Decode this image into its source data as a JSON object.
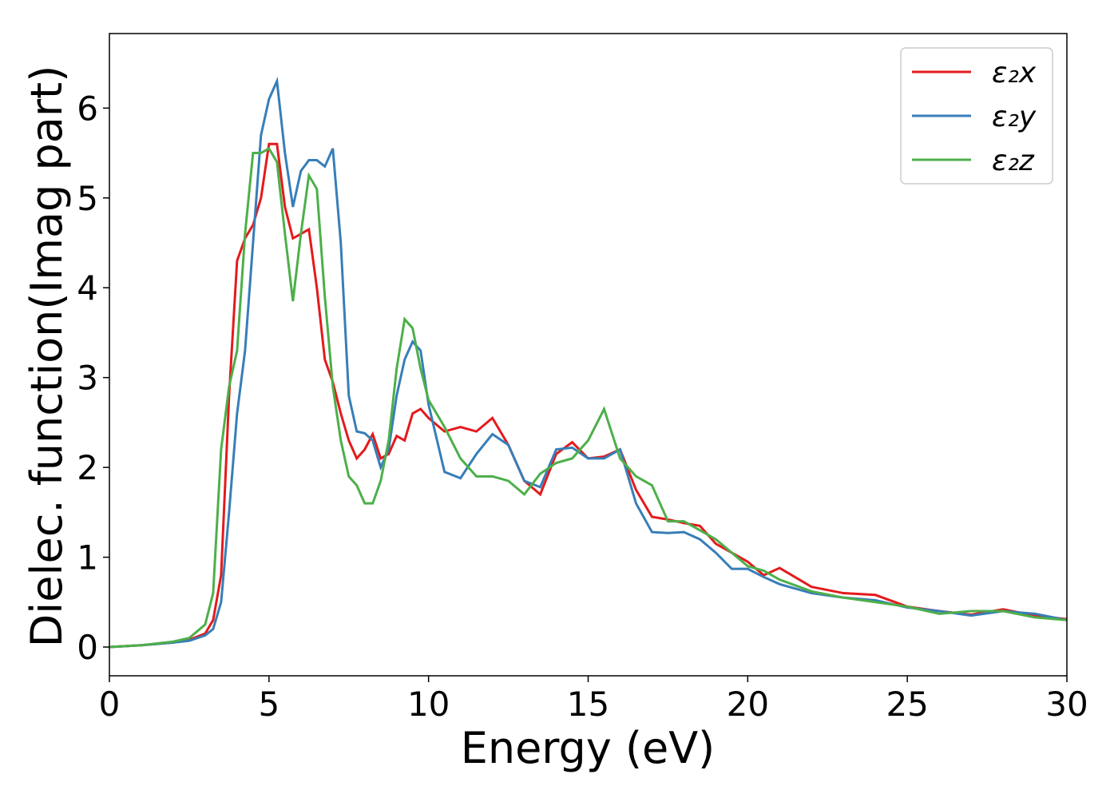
{
  "chart_data": {
    "type": "line",
    "xlabel": "Energy (eV)",
    "ylabel": "Dielec. function(Imag part)",
    "x": [
      0,
      1,
      2,
      2.5,
      3,
      3.25,
      3.5,
      3.75,
      4,
      4.25,
      4.5,
      4.75,
      5,
      5.25,
      5.5,
      5.75,
      6,
      6.25,
      6.5,
      6.75,
      7,
      7.25,
      7.5,
      7.75,
      8,
      8.25,
      8.5,
      8.75,
      9,
      9.25,
      9.5,
      9.75,
      10,
      10.5,
      11,
      11.5,
      12,
      12.5,
      13,
      13.5,
      14,
      14.5,
      15,
      15.5,
      16,
      16.5,
      17,
      17.5,
      18,
      18.5,
      19,
      19.5,
      20,
      20.5,
      21,
      22,
      23,
      24,
      25,
      26,
      27,
      28,
      29,
      30
    ],
    "series": [
      {
        "name": "ε₂x",
        "color": "#e41a1c",
        "values": [
          0,
          0.02,
          0.05,
          0.08,
          0.15,
          0.3,
          0.8,
          2.8,
          4.3,
          4.55,
          4.7,
          5.0,
          5.6,
          5.6,
          4.9,
          4.55,
          4.6,
          4.65,
          4.0,
          3.2,
          2.95,
          2.6,
          2.3,
          2.1,
          2.2,
          2.37,
          2.1,
          2.15,
          2.35,
          2.3,
          2.6,
          2.65,
          2.55,
          2.4,
          2.45,
          2.4,
          2.55,
          2.25,
          1.85,
          1.7,
          2.15,
          2.28,
          2.1,
          2.12,
          2.2,
          1.75,
          1.45,
          1.42,
          1.38,
          1.35,
          1.15,
          1.05,
          0.95,
          0.8,
          0.88,
          0.67,
          0.6,
          0.58,
          0.45,
          0.4,
          0.36,
          0.42,
          0.35,
          0.31
        ]
      },
      {
        "name": "ε₂y",
        "color": "#377eb8",
        "values": [
          0,
          0.02,
          0.05,
          0.07,
          0.13,
          0.2,
          0.5,
          1.5,
          2.6,
          3.3,
          4.5,
          5.7,
          6.1,
          6.3,
          5.5,
          4.9,
          5.3,
          5.42,
          5.42,
          5.35,
          5.55,
          4.5,
          2.8,
          2.4,
          2.38,
          2.3,
          2.0,
          2.2,
          2.8,
          3.2,
          3.4,
          3.3,
          2.7,
          1.95,
          1.88,
          2.15,
          2.37,
          2.25,
          1.85,
          1.78,
          2.2,
          2.22,
          2.1,
          2.1,
          2.2,
          1.6,
          1.28,
          1.27,
          1.28,
          1.2,
          1.05,
          0.87,
          0.87,
          0.78,
          0.7,
          0.6,
          0.55,
          0.52,
          0.44,
          0.4,
          0.35,
          0.4,
          0.37,
          0.3
        ]
      },
      {
        "name": "ε₂z",
        "color": "#4daf4a",
        "values": [
          0,
          0.02,
          0.06,
          0.1,
          0.25,
          0.6,
          2.2,
          2.9,
          3.3,
          4.6,
          5.5,
          5.5,
          5.55,
          5.4,
          4.6,
          3.85,
          4.6,
          5.25,
          5.1,
          3.9,
          2.9,
          2.3,
          1.9,
          1.8,
          1.6,
          1.6,
          1.85,
          2.3,
          3.1,
          3.65,
          3.55,
          3.1,
          2.75,
          2.45,
          2.1,
          1.9,
          1.9,
          1.85,
          1.7,
          1.93,
          2.05,
          2.1,
          2.3,
          2.65,
          2.1,
          1.9,
          1.8,
          1.4,
          1.4,
          1.3,
          1.2,
          1.05,
          0.9,
          0.85,
          0.75,
          0.62,
          0.55,
          0.5,
          0.45,
          0.37,
          0.4,
          0.4,
          0.33,
          0.3
        ]
      }
    ],
    "xlim": [
      0,
      30
    ],
    "xticks": [
      0,
      5,
      10,
      15,
      20,
      25,
      30
    ],
    "ylim": [
      -0.32,
      6.83
    ],
    "yticks": [
      0,
      1,
      2,
      3,
      4,
      5,
      6
    ],
    "legend": "upper right"
  }
}
